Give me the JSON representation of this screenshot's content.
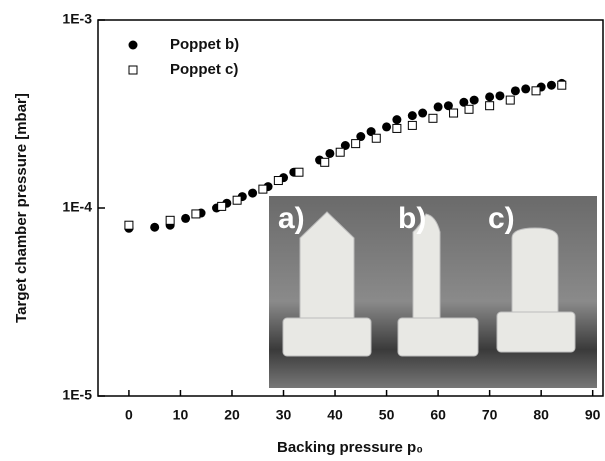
{
  "chart_data": {
    "type": "scatter",
    "xlabel": "Backing pressure p₀",
    "ylabel": "Target chamber pressure [mbar]",
    "xlim": [
      -6,
      92
    ],
    "ylim": [
      1e-05,
      0.001
    ],
    "log_y": true,
    "xticks": [
      0,
      10,
      20,
      30,
      40,
      50,
      60,
      70,
      80,
      90
    ],
    "yticks": [
      {
        "value": 1e-05,
        "label": "1E-5"
      },
      {
        "value": 0.0001,
        "label": "1E-4"
      },
      {
        "value": 0.001,
        "label": "1E-3"
      }
    ],
    "legend": "upper left",
    "annotations": [
      "a)",
      "b)",
      "c)"
    ],
    "series": [
      {
        "name": "Poppet b)",
        "color": "#000000",
        "marker": "filled-circle",
        "x": [
          0,
          5,
          8,
          11,
          14,
          17,
          19,
          22,
          24,
          27,
          30,
          32,
          37,
          39,
          42,
          45,
          47,
          50,
          52,
          55,
          57,
          60,
          62,
          65,
          67,
          70,
          72,
          75,
          77,
          80,
          82,
          84
        ],
        "values": [
          7.8e-05,
          7.9e-05,
          8.1e-05,
          8.8e-05,
          9.4e-05,
          0.0001,
          0.000106,
          0.000115,
          0.00012,
          0.00013,
          0.000145,
          0.000155,
          0.00018,
          0.000195,
          0.000215,
          0.00024,
          0.000255,
          0.00027,
          0.000295,
          0.00031,
          0.00032,
          0.000345,
          0.00035,
          0.000365,
          0.000375,
          0.00039,
          0.000395,
          0.00042,
          0.00043,
          0.00044,
          0.00045,
          0.00046
        ]
      },
      {
        "name": "Poppet c)",
        "color": "#000000",
        "marker": "open-square",
        "x": [
          0,
          8,
          13,
          18,
          21,
          26,
          29,
          33,
          38,
          41,
          44,
          48,
          52,
          55,
          59,
          63,
          66,
          70,
          74,
          79,
          84
        ],
        "values": [
          8.1e-05,
          8.6e-05,
          9.3e-05,
          0.000102,
          0.00011,
          0.000126,
          0.00014,
          0.000155,
          0.000175,
          0.000198,
          0.00022,
          0.000235,
          0.000265,
          0.000275,
          0.0003,
          0.00032,
          0.000335,
          0.00035,
          0.000375,
          0.00042,
          0.00045
        ]
      }
    ]
  }
}
